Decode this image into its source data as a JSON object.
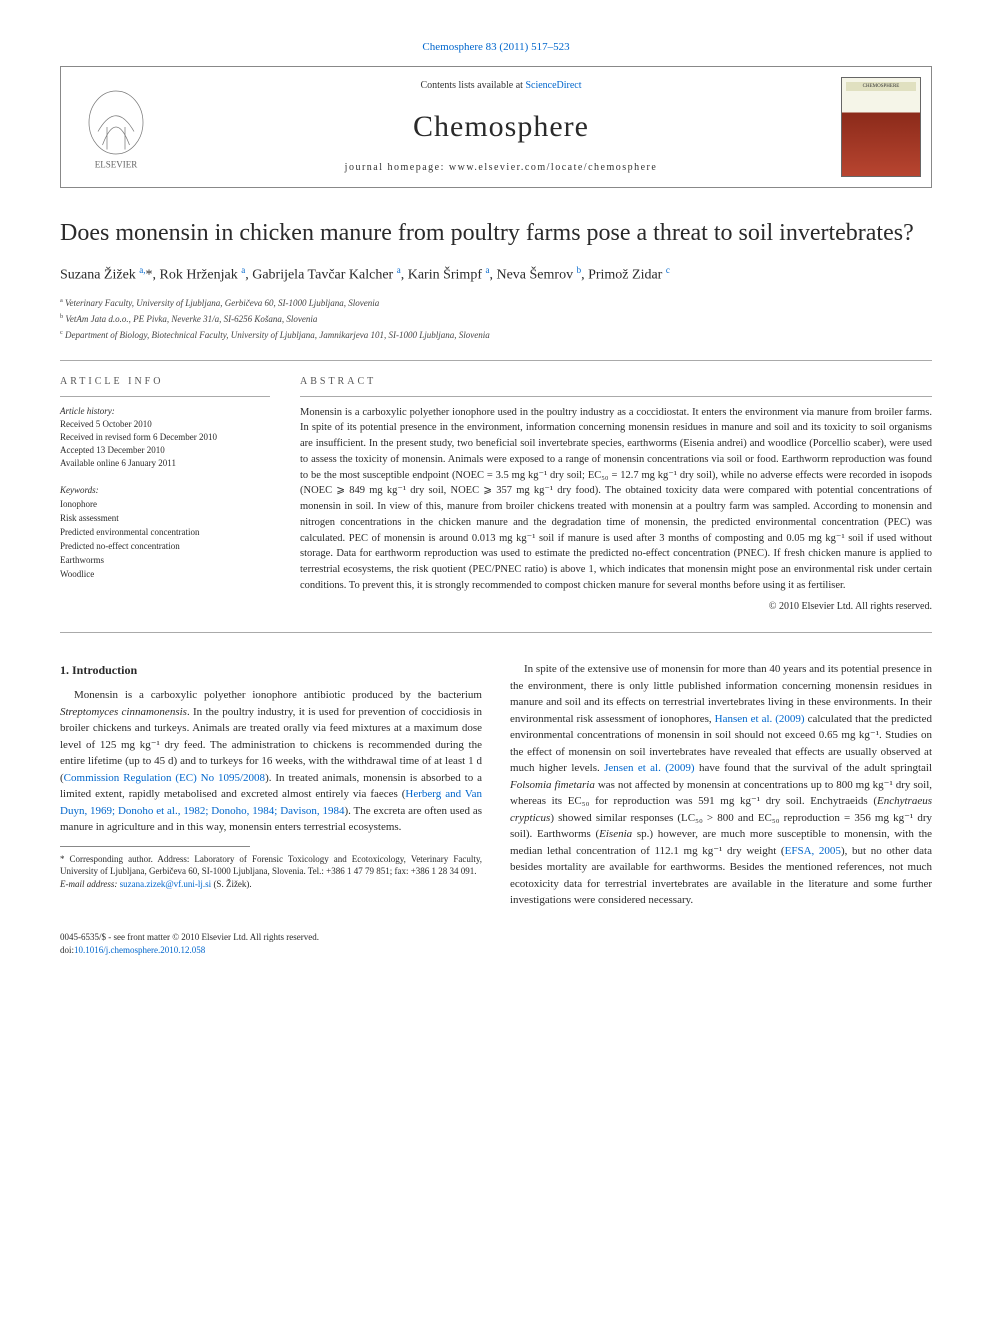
{
  "top_reference": "Chemosphere 83 (2011) 517–523",
  "header": {
    "contents_pre": "Contents lists available at ",
    "contents_link": "ScienceDirect",
    "journal": "Chemosphere",
    "homepage": "journal homepage: www.elsevier.com/locate/chemosphere",
    "elsevier_alt": "ELSEVIER",
    "cover_label": "CHEMOSPHERE"
  },
  "title": "Does monensin in chicken manure from poultry farms pose a threat to soil invertebrates?",
  "authors_html": "Suzana Žižek <sup>a,</sup>*, Rok Hrženjak <sup>a</sup>, Gabrijela Tavčar Kalcher <sup>a</sup>, Karin Šrimpf <sup>a</sup>, Neva Šemrov <sup>b</sup>, Primož Zidar <sup>c</sup>",
  "affiliations": {
    "a": "Veterinary Faculty, University of Ljubljana, Gerbičeva 60, SI-1000 Ljubljana, Slovenia",
    "b": "VetAm Jata d.o.o., PE Pivka, Neverke 31/a, SI-6256 Košana, Slovenia",
    "c": "Department of Biology, Biotechnical Faculty, University of Ljubljana, Jamnikarjeva 101, SI-1000 Ljubljana, Slovenia"
  },
  "article_info": {
    "label": "ARTICLE INFO",
    "history_label": "Article history:",
    "history": {
      "received": "Received 5 October 2010",
      "revised": "Received in revised form 6 December 2010",
      "accepted": "Accepted 13 December 2010",
      "online": "Available online 6 January 2011"
    },
    "keywords_label": "Keywords:",
    "keywords": [
      "Ionophore",
      "Risk assessment",
      "Predicted environmental concentration",
      "Predicted no-effect concentration",
      "Earthworms",
      "Woodlice"
    ]
  },
  "abstract": {
    "label": "ABSTRACT",
    "text": "Monensin is a carboxylic polyether ionophore used in the poultry industry as a coccidiostat. It enters the environment via manure from broiler farms. In spite of its potential presence in the environment, information concerning monensin residues in manure and soil and its toxicity to soil organisms are insufficient. In the present study, two beneficial soil invertebrate species, earthworms (Eisenia andrei) and woodlice (Porcellio scaber), were used to assess the toxicity of monensin. Animals were exposed to a range of monensin concentrations via soil or food. Earthworm reproduction was found to be the most susceptible endpoint (NOEC = 3.5 mg kg⁻¹ dry soil; EC₅₀ = 12.7 mg kg⁻¹ dry soil), while no adverse effects were recorded in isopods (NOEC ⩾ 849 mg kg⁻¹ dry soil, NOEC ⩾ 357 mg kg⁻¹ dry food). The obtained toxicity data were compared with potential concentrations of monensin in soil. In view of this, manure from broiler chickens treated with monensin at a poultry farm was sampled. According to monensin and nitrogen concentrations in the chicken manure and the degradation time of monensin, the predicted environmental concentration (PEC) was calculated. PEC of monensin is around 0.013 mg kg⁻¹ soil if manure is used after 3 months of composting and 0.05 mg kg⁻¹ soil if used without storage. Data for earthworm reproduction was used to estimate the predicted no-effect concentration (PNEC). If fresh chicken manure is applied to terrestrial ecosystems, the risk quotient (PEC/PNEC ratio) is above 1, which indicates that monensin might pose an environmental risk under certain conditions. To prevent this, it is strongly recommended to compost chicken manure for several months before using it as fertiliser.",
    "copyright": "© 2010 Elsevier Ltd. All rights reserved."
  },
  "body": {
    "intro_heading": "1. Introduction",
    "p1_pre": "Monensin is a carboxylic polyether ionophore antibiotic produced by the bacterium ",
    "p1_species": "Streptomyces cinnamonensis",
    "p1_mid": ". In the poultry industry, it is used for prevention of coccidiosis in broiler chickens and turkeys. Animals are treated orally via feed mixtures at a maximum dose level of 125 mg kg⁻¹ dry feed. The administration to chickens is recommended during the entire lifetime (up to 45 d) and to turkeys for 16 weeks, with the withdrawal time of at least 1 d (",
    "p1_ref1": "Commission Regulation (EC) No 1095/2008",
    "p1_mid2": "). In treated animals, monensin is absorbed to a limited extent, rapidly metabolised and excreted almost entirely via faeces (",
    "p1_ref2": "Herberg and Van Duyn, 1969; Donoho et al., 1982; Donoho, 1984; Davison, 1984",
    "p1_end": "). The excreta are often used as manure in agriculture and in this way, monensin enters terrestrial ecosystems.",
    "p2_pre": "In spite of the extensive use of monensin for more than 40 years and its potential presence in the environment, there is only little published information concerning monensin residues in manure and soil and its effects on terrestrial invertebrates living in these environments. In their environmental risk assessment of ionophores, ",
    "p2_ref1": "Hansen et al. (2009)",
    "p2_mid1": " calculated that the predicted environmental concentrations of monensin in soil should not exceed 0.65 mg kg⁻¹. Studies on the effect of monensin on soil invertebrates have revealed that effects are usually observed at much higher levels. ",
    "p2_ref2": "Jensen et al. (2009)",
    "p2_mid2": " have found that the survival of the adult springtail ",
    "p2_sp1": "Folsomia fimetaria",
    "p2_mid3": " was not affected by monensin at concentrations up to 800 mg kg⁻¹ dry soil, whereas its EC₅₀ for reproduction was 591 mg kg⁻¹ dry soil. Enchytraeids (",
    "p2_sp2": "Enchytraeus crypticus",
    "p2_mid4": ") showed similar responses (LC₅₀ > 800 and EC₅₀ reproduction = 356 mg kg⁻¹ dry soil). Earthworms (",
    "p2_sp3": "Eisenia",
    "p2_mid5": " sp.) however, are much more susceptible to monensin, with the median lethal concentration of 112.1 mg kg⁻¹ dry weight (",
    "p2_ref3": "EFSA, 2005",
    "p2_end": "), but no other data besides mortality are available for earthworms. Besides the mentioned references, not much ecotoxicity data for terrestrial invertebrates are available in the literature and some further investigations were considered necessary."
  },
  "footnote": {
    "corr": "* Corresponding author. Address: Laboratory of Forensic Toxicology and Ecotoxicology, Veterinary Faculty, University of Ljubljana, Gerbičeva 60, SI-1000 Ljubljana, Slovenia. Tel.: +386 1 47 79 851; fax: +386 1 28 34 091.",
    "email_label": "E-mail address: ",
    "email": "suzana.zizek@vf.uni-lj.si",
    "email_suffix": " (S. Žižek)."
  },
  "bottom": {
    "line1": "0045-6535/$ - see front matter © 2010 Elsevier Ltd. All rights reserved.",
    "doi_label": "doi:",
    "doi": "10.1016/j.chemosphere.2010.12.058"
  },
  "colors": {
    "link": "#0066cc",
    "rule": "#888888",
    "text": "#2a2a2a"
  }
}
